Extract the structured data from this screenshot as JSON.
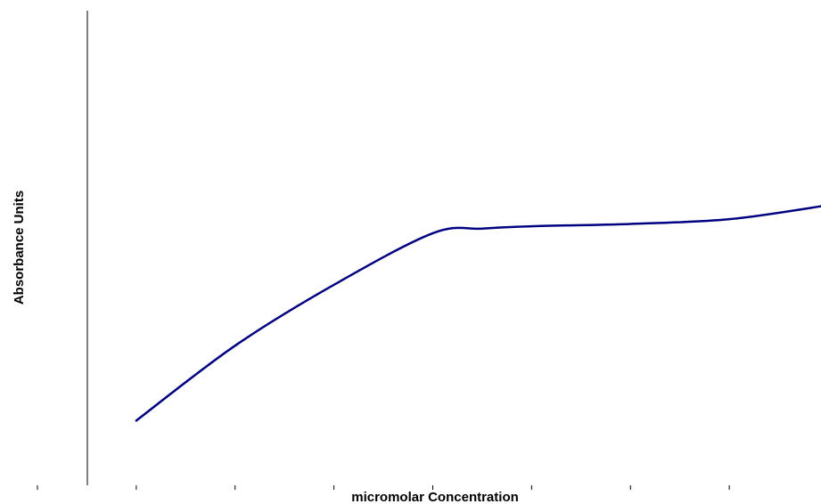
{
  "chart_data": {
    "type": "line",
    "title": "",
    "xlabel": "micromolar Concentration",
    "ylabel": "Absorbance Units",
    "xlim": [
      0,
      8
    ],
    "ylim": [
      0,
      10
    ],
    "x_ticks": [
      0,
      1,
      2,
      3,
      4,
      5,
      6,
      7,
      8
    ],
    "x_tick_labels": [],
    "y_ticks": [],
    "grid": false,
    "legend": "none",
    "series": [
      {
        "color": "#000080",
        "x": [
          1,
          2,
          3,
          4,
          4.5,
          5,
          6,
          7,
          8
        ],
        "y": [
          1.4,
          3.0,
          4.3,
          5.4,
          5.5,
          5.55,
          5.6,
          5.7,
          6.0
        ]
      }
    ]
  }
}
